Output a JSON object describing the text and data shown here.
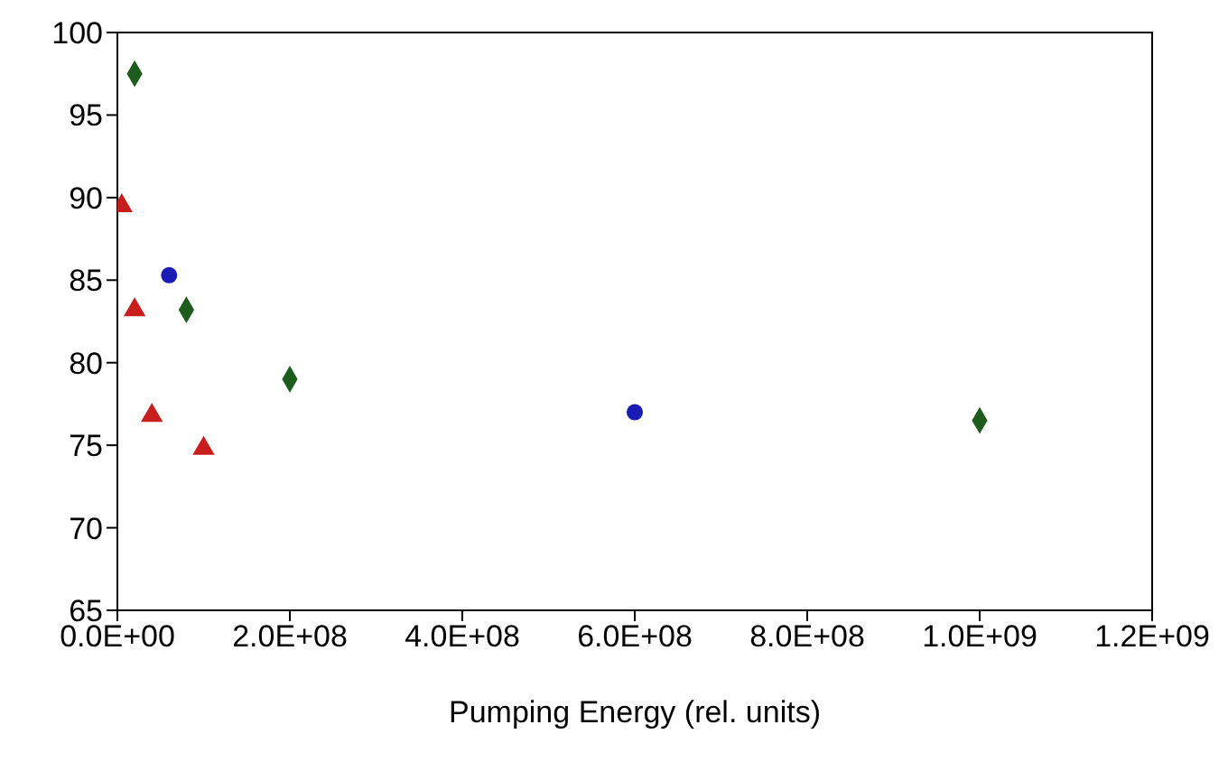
{
  "chart_data": {
    "type": "scatter",
    "xlabel": "Pumping Energy (rel. units)",
    "grid": false,
    "legend": false,
    "xlim": [
      0,
      1200000000
    ],
    "xticks": [
      {
        "value": 0,
        "label": "0.0E+00"
      },
      {
        "value": 200000000,
        "label": "2.0E+08"
      },
      {
        "value": 400000000,
        "label": "4.0E+08"
      },
      {
        "value": 600000000,
        "label": "6.0E+08"
      },
      {
        "value": 800000000,
        "label": "8.0E+08"
      },
      {
        "value": 1000000000,
        "label": "1.0E+09"
      },
      {
        "value": 1200000000,
        "label": "1.2E+09"
      }
    ],
    "ylim": [
      65,
      100
    ],
    "yticks": [
      65,
      70,
      75,
      80,
      85,
      90,
      95,
      100
    ],
    "series": [
      {
        "color": "#1e5c1e",
        "marker": "diamond",
        "x": [
          20000000,
          80000000,
          200000000,
          1000000000
        ],
        "values": [
          97.5,
          83.2,
          79,
          76.5
        ]
      },
      {
        "color": "#1a1ab4",
        "marker": "circle",
        "x": [
          60000000,
          600000000
        ],
        "values": [
          85.3,
          77
        ]
      },
      {
        "color": "#c81e1e",
        "marker": "triangle",
        "x": [
          5000000,
          20000000,
          40000000,
          100000000
        ],
        "values": [
          89.5,
          83.2,
          76.8,
          74.8
        ]
      }
    ]
  }
}
